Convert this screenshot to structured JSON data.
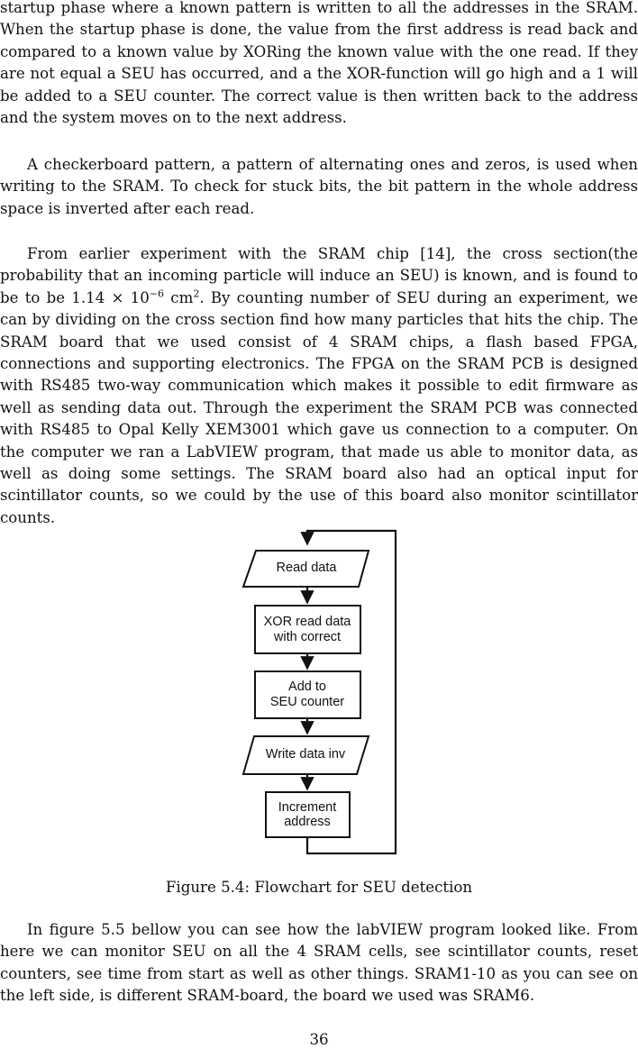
{
  "paragraphs": {
    "p1": "startup phase where a known pattern is written to all the addresses in the SRAM. When the startup phase is done, the value from the first address is read back and compared to a known value by XORing the known value with the one read. If they are not equal a SEU has occurred, and a the XOR-function will go high and a 1 will be added to a SEU counter. The correct value is then written back to the address and the system moves on to the next address.",
    "p2": "A checkerboard pattern, a pattern of alternating ones and zeros, is used when writing to the SRAM. To check for stuck bits, the bit pattern in the whole address space is inverted after each read.",
    "p3_before": "From earlier experiment with the SRAM chip [14], the cross section(the probability that an incoming particle will induce an SEU) is known, and is found to be to be 1.14 × 10",
    "p3_exp1": "−6",
    "p3_mid": " cm",
    "p3_exp2": "2",
    "p3_after": ". By counting number of SEU during an experiment, we can by dividing on the cross section find how many particles that hits the chip. The SRAM board that we used consist of 4 SRAM chips, a flash based FPGA, connections and supporting electronics. The FPGA on the SRAM PCB is designed with RS485 two-way communication which makes it possible to edit firmware as well as sending data out. Through the experiment the SRAM PCB was connected with RS485 to Opal Kelly XEM3001 which gave us connection to a computer. On the computer we ran a LabVIEW program, that made us able to monitor data, as well as doing some settings. The SRAM board also had an optical input for scintillator counts, so we could by the use of this board also monitor scintillator counts.",
    "p4": "In figure 5.5 bellow you can see how the labVIEW program looked like. From here we can monitor SEU on all the 4 SRAM cells, see scintillator counts, reset counters, see time from start as well as other things. SRAM1-10 as you can see on the left side, is different SRAM-board, the board we used was SRAM6."
  },
  "flowchart": {
    "read_data": "Read data",
    "xor_line1": "XOR read data",
    "xor_line2": "with correct",
    "add_line1": "Add to",
    "add_line2": "SEU counter",
    "write_inv": "Write data inv",
    "inc_line1": "Increment",
    "inc_line2": "address"
  },
  "caption": "Figure 5.4: Flowchart for SEU detection",
  "page_number": "36"
}
